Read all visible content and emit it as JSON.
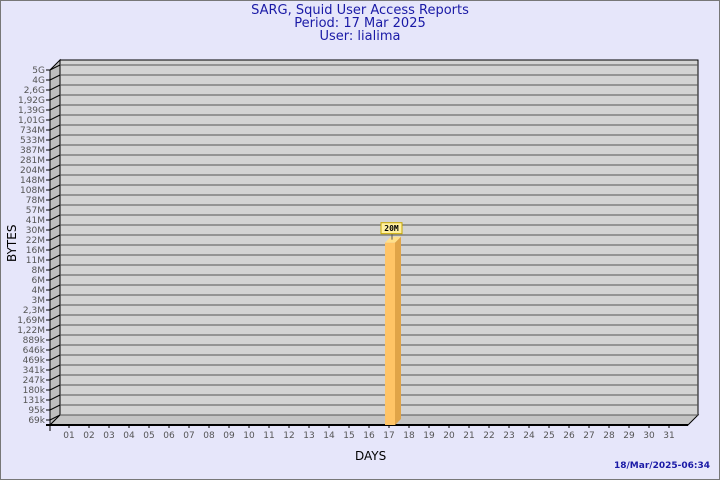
{
  "header": {
    "title": "SARG, Squid User Access Reports",
    "period": "Period: 17 Mar 2025",
    "user": "User: lialima"
  },
  "footer": {
    "timestamp": "18/Mar/2025-06:34"
  },
  "colors": {
    "background": "#e6e6fa",
    "plot": "#d3d3d3",
    "bar_front": "#ffc466",
    "bar_side": "#e0a448",
    "title": "#1a1aa6"
  },
  "chart_data": {
    "type": "bar",
    "xlabel": "DAYS",
    "ylabel": "BYTES",
    "y_scale": "log",
    "grid": true,
    "categories": [
      "01",
      "02",
      "03",
      "04",
      "05",
      "06",
      "07",
      "08",
      "09",
      "10",
      "11",
      "12",
      "13",
      "14",
      "15",
      "16",
      "17",
      "18",
      "19",
      "20",
      "21",
      "22",
      "23",
      "24",
      "25",
      "26",
      "27",
      "28",
      "29",
      "30",
      "31"
    ],
    "y_tick_labels": [
      "5G",
      "4G",
      "2,6G",
      "1,92G",
      "1,39G",
      "1,01G",
      "734M",
      "533M",
      "387M",
      "281M",
      "204M",
      "148M",
      "108M",
      "78M",
      "57M",
      "41M",
      "30M",
      "22M",
      "16M",
      "11M",
      "8M",
      "6M",
      "4M",
      "3M",
      "2,3M",
      "1,69M",
      "1,22M",
      "889k",
      "646k",
      "469k",
      "341k",
      "247k",
      "180k",
      "131k",
      "95k",
      "69k"
    ],
    "ylim": [
      69000,
      5000000000
    ],
    "bars": [
      {
        "category": "17",
        "value": 20000000,
        "label": "20M"
      }
    ]
  }
}
